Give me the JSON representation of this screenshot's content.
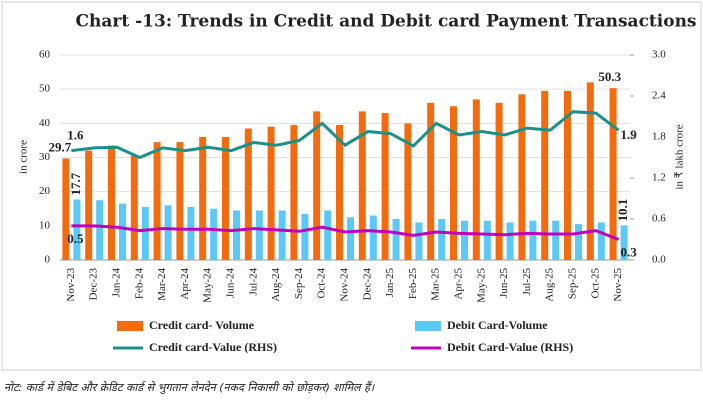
{
  "chart_data": {
    "type": "bar-line",
    "title": "Chart -13: Trends in Credit and Debit card Payment Transactions",
    "ylabel": "in crore",
    "y2label": "in ₹ lakh crore",
    "footnote": "नोट: कार्ड में डेबिट और क्रेडिट कार्ड से भुगतान लेनदेन (नकद निकासी को छोड़कर) शामिल हैं।",
    "categories": [
      "Nov-23",
      "Dec-23",
      "Jan-24",
      "Feb-24",
      "Mar-24",
      "Apr-24",
      "May-24",
      "Jun-24",
      "Jul-24",
      "Aug-24",
      "Sep-24",
      "Oct-24",
      "Nov-24",
      "Dec-24",
      "Jan-25",
      "Feb-25",
      "Mar-25",
      "Apr-25",
      "May-25",
      "Jun-25",
      "Jul-25",
      "Aug-25",
      "Sep-25",
      "Oct-25",
      "Nov-25"
    ],
    "ylim": [
      0,
      60
    ],
    "yticks": [
      0,
      10,
      20,
      30,
      40,
      50,
      60
    ],
    "y2lim": [
      0,
      3.0
    ],
    "y2ticks": [
      {
        "value": 0,
        "label": "0.0"
      },
      0.6,
      1.2,
      1.8,
      2.4,
      {
        "value": 3.0,
        "label": "3.0"
      }
    ],
    "series": [
      {
        "name": "Credit card- Volume",
        "kind": "bar",
        "color": "#f26b0f",
        "label_color": "#e0201f",
        "data_labels": [
          0,
          24
        ],
        "values": [
          29.7,
          32,
          33.5,
          30.5,
          34.5,
          34.5,
          36,
          36,
          38.5,
          39,
          39.5,
          43.5,
          39.5,
          43.5,
          43,
          40,
          46,
          45,
          47,
          46,
          48.5,
          49.5,
          49.5,
          52,
          50.3
        ]
      },
      {
        "name": "Debit Card-Volume",
        "kind": "bar",
        "color": "#5bc8f5",
        "label_color": "#3a9ad8",
        "data_labels": [
          0,
          24
        ],
        "values": [
          17.7,
          17.5,
          16.5,
          15.5,
          16,
          15.5,
          15,
          14.5,
          14.5,
          14.5,
          13.5,
          14.5,
          12.5,
          13,
          12,
          11,
          12,
          11.5,
          11.5,
          11,
          11.5,
          11.5,
          10.5,
          11,
          10.1
        ]
      },
      {
        "name": "Credit card-Value (RHS)",
        "kind": "line",
        "axis": "y2",
        "color": "#1a9088",
        "label_color": "#3a9a3a",
        "data_labels": [
          0,
          24
        ],
        "values": [
          1.6,
          1.64,
          1.65,
          1.5,
          1.64,
          1.6,
          1.65,
          1.6,
          1.72,
          1.68,
          1.75,
          2.0,
          1.68,
          1.88,
          1.85,
          1.67,
          2.0,
          1.83,
          1.88,
          1.83,
          1.93,
          1.9,
          2.17,
          2.15,
          1.9
        ]
      },
      {
        "name": "Debit Card-Value (RHS)",
        "kind": "line",
        "axis": "y2",
        "color": "#c000c0",
        "label_color": "#7030a0",
        "data_labels": [
          0,
          24
        ],
        "values": [
          0.5,
          0.5,
          0.48,
          0.43,
          0.46,
          0.45,
          0.45,
          0.43,
          0.46,
          0.44,
          0.42,
          0.48,
          0.41,
          0.43,
          0.41,
          0.36,
          0.41,
          0.39,
          0.38,
          0.37,
          0.39,
          0.38,
          0.38,
          0.43,
          0.3
        ]
      }
    ]
  }
}
